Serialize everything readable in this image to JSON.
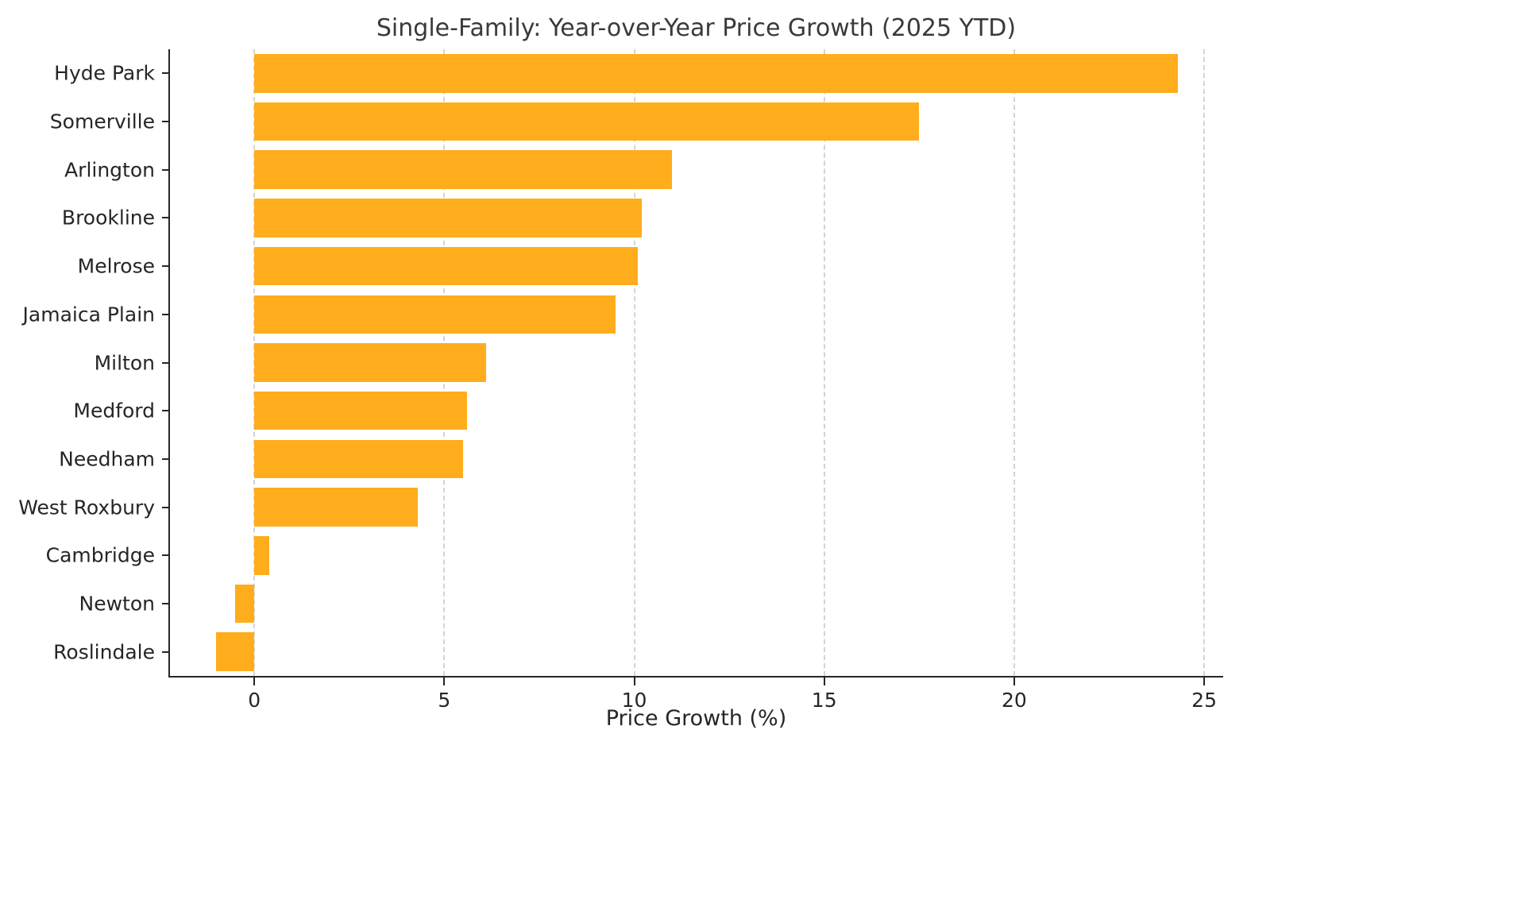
{
  "chart_data": {
    "type": "bar",
    "orientation": "horizontal",
    "title": "Single-Family: Year-over-Year Price Growth (2025 YTD)",
    "xlabel": "Price Growth (%)",
    "ylabel": "",
    "categories": [
      "Hyde Park",
      "Somerville",
      "Arlington",
      "Brookline",
      "Melrose",
      "Jamaica Plain",
      "Milton",
      "Medford",
      "Needham",
      "West Roxbury",
      "Cambridge",
      "Newton",
      "Roslindale"
    ],
    "values": [
      24.3,
      17.5,
      11.0,
      10.2,
      10.1,
      9.5,
      6.1,
      5.6,
      5.5,
      4.3,
      0.4,
      -0.5,
      -1.0
    ],
    "xlim": [
      -2.24,
      25.5
    ],
    "xticks": [
      0,
      5,
      10,
      15,
      20,
      25
    ],
    "grid": true,
    "legend": false,
    "bar_color": "#FFAD1C",
    "bar_width_fraction": 0.8
  }
}
